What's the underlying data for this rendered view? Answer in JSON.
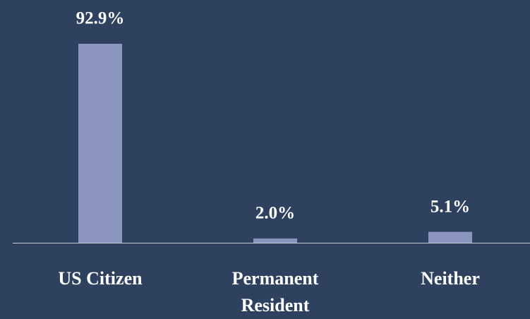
{
  "chart_data": {
    "type": "bar",
    "categories": [
      "US Citizen",
      "Permanent Resident",
      "Neither"
    ],
    "values": [
      92.9,
      2.0,
      5.1
    ],
    "value_labels": [
      "92.9%",
      "2.0%",
      "5.1%"
    ],
    "color": "#8a96bf"
  }
}
